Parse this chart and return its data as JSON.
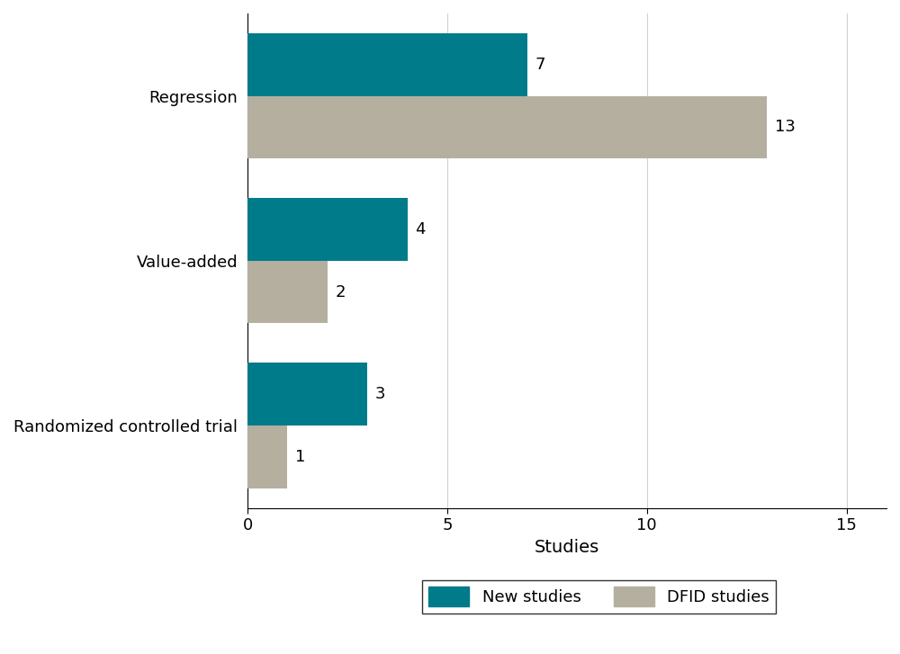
{
  "categories": [
    "Regression",
    "Value-added",
    "Randomized controlled trial"
  ],
  "new_studies": [
    7,
    4,
    3
  ],
  "dfid_studies": [
    13,
    2,
    1
  ],
  "new_color": "#007B8A",
  "dfid_color": "#B5AFA0",
  "xlabel": "Studies",
  "xlim": [
    0,
    16
  ],
  "xticks": [
    0,
    5,
    10,
    15
  ],
  "bar_height": 0.38,
  "legend_labels": [
    "New studies",
    "DFID studies"
  ],
  "background_color": "#ffffff",
  "value_fontsize": 13,
  "label_fontsize": 13,
  "axis_fontsize": 13
}
